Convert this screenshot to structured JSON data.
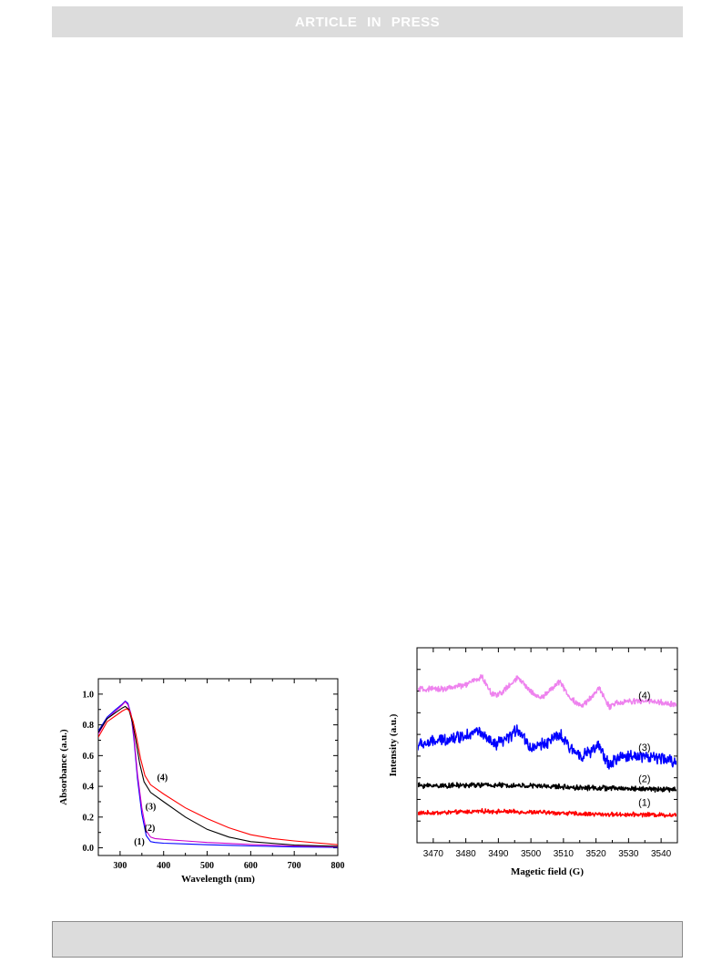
{
  "header": {
    "banner_text": "ARTICLE IN PRESS"
  },
  "colors": {
    "banner_bg": "#dcdcdc",
    "red": "#ff0000",
    "black": "#000000",
    "magenta": "#cc00cc",
    "blue": "#0000ff",
    "pink": "#ee82ee"
  },
  "chart_data": [
    {
      "type": "line",
      "title": "",
      "xlabel": "Wavelength (nm)",
      "ylabel": "Absorbance (a.u.)",
      "xlim": [
        250,
        800
      ],
      "ylim": [
        -0.05,
        1.1
      ],
      "xticks": [
        300,
        400,
        500,
        600,
        700,
        800
      ],
      "yticks": [
        0.0,
        0.2,
        0.4,
        0.6,
        0.8,
        1.0
      ],
      "xtick_labels": [
        "300",
        "400",
        "500",
        "600",
        "700",
        "800"
      ],
      "ytick_labels": [
        "0.0",
        "0.2",
        "0.4",
        "0.6",
        "0.8",
        "1.0"
      ],
      "grid": false,
      "series": [
        {
          "label": "(1)",
          "color": "#0000ff",
          "x": [
            250,
            270,
            290,
            305,
            312,
            318,
            325,
            332,
            340,
            350,
            360,
            370,
            380,
            400,
            450,
            500,
            600,
            700,
            800
          ],
          "y": [
            0.76,
            0.85,
            0.9,
            0.935,
            0.955,
            0.94,
            0.87,
            0.7,
            0.45,
            0.22,
            0.08,
            0.04,
            0.035,
            0.03,
            0.025,
            0.02,
            0.012,
            0.006,
            0.003
          ]
        },
        {
          "label": "(2)",
          "color": "#cc00cc",
          "x": [
            250,
            270,
            290,
            305,
            312,
            318,
            325,
            332,
            340,
            350,
            360,
            370,
            380,
            400,
            450,
            500,
            600,
            700,
            800
          ],
          "y": [
            0.74,
            0.84,
            0.89,
            0.93,
            0.95,
            0.93,
            0.87,
            0.72,
            0.48,
            0.26,
            0.11,
            0.07,
            0.06,
            0.055,
            0.045,
            0.035,
            0.022,
            0.012,
            0.006
          ]
        },
        {
          "label": "(3)",
          "color": "#000000",
          "x": [
            250,
            270,
            290,
            305,
            312,
            320,
            328,
            335,
            345,
            355,
            370,
            400,
            450,
            500,
            550,
            600,
            700,
            800
          ],
          "y": [
            0.75,
            0.84,
            0.88,
            0.91,
            0.92,
            0.9,
            0.82,
            0.72,
            0.55,
            0.43,
            0.36,
            0.3,
            0.2,
            0.12,
            0.07,
            0.04,
            0.018,
            0.01
          ]
        },
        {
          "label": "(4)",
          "color": "#ff0000",
          "x": [
            250,
            270,
            290,
            305,
            315,
            322,
            330,
            337,
            347,
            357,
            370,
            400,
            450,
            500,
            550,
            600,
            650,
            700,
            800
          ],
          "y": [
            0.72,
            0.82,
            0.86,
            0.89,
            0.905,
            0.89,
            0.82,
            0.73,
            0.58,
            0.47,
            0.41,
            0.35,
            0.26,
            0.19,
            0.13,
            0.085,
            0.06,
            0.045,
            0.02
          ]
        }
      ],
      "annotations": [
        {
          "text": "(4)",
          "x": 385,
          "y": 0.44
        },
        {
          "text": "(3)",
          "x": 358,
          "y": 0.25
        },
        {
          "text": "(2)",
          "x": 356,
          "y": 0.11
        },
        {
          "text": "(1)",
          "x": 332,
          "y": 0.02
        }
      ]
    },
    {
      "type": "line",
      "title": "",
      "xlabel": "Magetic field (G)",
      "ylabel": "Intensity (a.u.)",
      "xlim": [
        3465,
        3545
      ],
      "xticks": [
        3470,
        3480,
        3490,
        3500,
        3510,
        3520,
        3530,
        3540
      ],
      "xtick_labels": [
        "3470",
        "3480",
        "3490",
        "3500",
        "3510",
        "3520",
        "3530",
        "3540"
      ],
      "y_ticks_shown": false,
      "grid": false,
      "series": [
        {
          "label": "(1)",
          "color": "#ff0000",
          "noise": 0.025,
          "x": [
            3465,
            3475,
            3485,
            3495,
            3505,
            3515,
            3525,
            3535,
            3545
          ],
          "y": [
            0.09,
            0.1,
            0.12,
            0.11,
            0.1,
            0.08,
            0.07,
            0.07,
            0.06
          ]
        },
        {
          "label": "(2)",
          "color": "#000000",
          "noise": 0.03,
          "x": [
            3465,
            3475,
            3485,
            3495,
            3505,
            3515,
            3525,
            3535,
            3545
          ],
          "y": [
            0.5,
            0.5,
            0.51,
            0.5,
            0.49,
            0.47,
            0.46,
            0.45,
            0.44
          ]
        },
        {
          "label": "(3)",
          "color": "#0000ff",
          "noise": 0.07,
          "x": [
            3465,
            3470,
            3475,
            3480,
            3484,
            3486,
            3489,
            3493,
            3496,
            3500,
            3505,
            3509,
            3512,
            3516,
            3521,
            3524,
            3527,
            3533,
            3540,
            3545
          ],
          "y": [
            1.1,
            1.15,
            1.2,
            1.25,
            1.32,
            1.2,
            1.1,
            1.2,
            1.35,
            1.05,
            1.15,
            1.25,
            1.05,
            0.95,
            1.08,
            0.8,
            0.92,
            0.95,
            0.9,
            0.85
          ]
        },
        {
          "label": "(4)",
          "color": "#ee82ee",
          "noise": 0.035,
          "x": [
            3465,
            3470,
            3475,
            3480,
            3485,
            3488,
            3491,
            3496,
            3500,
            3503,
            3509,
            3512,
            3516,
            3521,
            3524,
            3527,
            3530,
            3536,
            3545
          ],
          "y": [
            1.93,
            1.93,
            1.95,
            2.0,
            2.12,
            1.85,
            1.88,
            2.1,
            1.9,
            1.8,
            2.05,
            1.8,
            1.68,
            1.95,
            1.68,
            1.73,
            1.75,
            1.76,
            1.7
          ]
        }
      ],
      "annotations": [
        {
          "text": "(4)",
          "x": 3533,
          "y": 1.79
        },
        {
          "text": "(3)",
          "x": 3533,
          "y": 1.02
        },
        {
          "text": "(2)",
          "x": 3533,
          "y": 0.55
        },
        {
          "text": "(1)",
          "x": 3533,
          "y": 0.2
        }
      ]
    }
  ]
}
